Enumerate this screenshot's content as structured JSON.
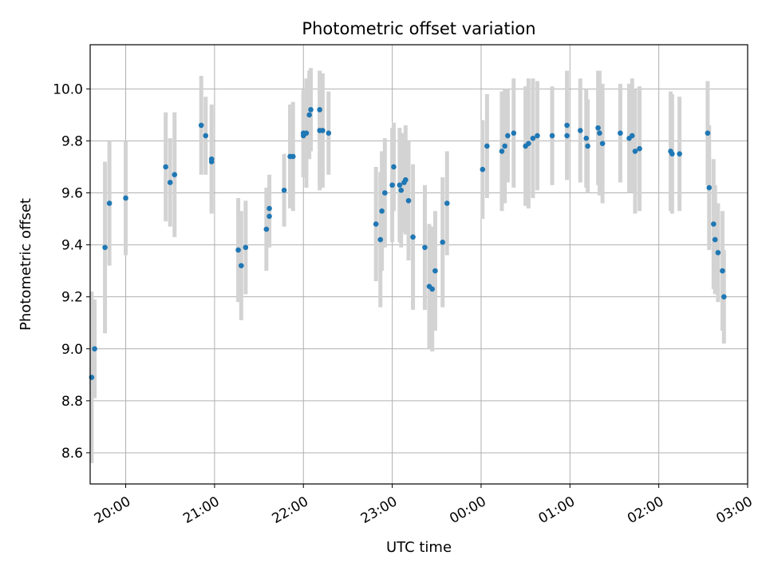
{
  "chart_data": {
    "type": "scatter",
    "title": "Photometric offset variation",
    "xlabel": "UTC time",
    "ylabel": "Photometric offset",
    "grid": true,
    "legend": "none",
    "xlim": [
      "19:36",
      "03:00 (+1 day)"
    ],
    "ylim": [
      8.48,
      10.17
    ],
    "x_tick_labels": [
      "20:00",
      "21:00",
      "22:00",
      "23:00",
      "00:00",
      "01:00",
      "02:00",
      "03:00"
    ],
    "y_tick_values": [
      8.6,
      8.8,
      9.0,
      9.2,
      9.4,
      9.6,
      9.8,
      10.0
    ],
    "y_tick_labels": [
      "8.6",
      "8.8",
      "9.0",
      "9.2",
      "9.4",
      "9.6",
      "9.8",
      "10.0"
    ],
    "colors": {
      "point": "#1f77b4",
      "errorbar": "#d3d3d3",
      "grid": "#b0b0b0",
      "axes": "#000000"
    },
    "series": [
      {
        "x": [
          "19:37",
          "19:39",
          "19:46",
          "19:49",
          "20:00",
          "20:27",
          "20:30",
          "20:33",
          "20:51",
          "20:54",
          "20:58",
          "20:58",
          "21:16",
          "21:18",
          "21:21",
          "21:35",
          "21:37",
          "21:37",
          "21:47",
          "21:51",
          "21:53",
          "22:00",
          "22:00",
          "22:02",
          "22:05",
          "22:04",
          "22:11",
          "22:11",
          "22:13",
          "22:17",
          "22:49",
          "22:52",
          "22:53",
          "22:55",
          "23:00",
          "23:01",
          "23:05",
          "23:06",
          "23:08",
          "23:09",
          "23:11",
          "23:14",
          "23:22",
          "23:25",
          "23:27",
          "23:29",
          "23:34",
          "23:37",
          "00:01",
          "00:04",
          "00:14",
          "00:16",
          "00:18",
          "00:22",
          "00:30",
          "00:32",
          "00:35",
          "00:38",
          "00:48",
          "00:58",
          "00:58",
          "01:07",
          "01:11",
          "01:12",
          "01:19",
          "01:20",
          "01:22",
          "01:34",
          "01:40",
          "01:42",
          "01:44",
          "01:47",
          "02:08",
          "02:09",
          "02:14",
          "02:33",
          "02:34",
          "02:37",
          "02:38",
          "02:40",
          "02:43",
          "02:44"
        ],
        "y": [
          8.89,
          9.0,
          9.39,
          9.56,
          9.58,
          9.7,
          9.64,
          9.67,
          9.86,
          9.82,
          9.73,
          9.72,
          9.38,
          9.32,
          9.39,
          9.46,
          9.54,
          9.51,
          9.61,
          9.74,
          9.74,
          9.82,
          9.83,
          9.83,
          9.92,
          9.9,
          9.92,
          9.84,
          9.84,
          9.83,
          9.48,
          9.42,
          9.53,
          9.6,
          9.63,
          9.7,
          9.63,
          9.61,
          9.64,
          9.65,
          9.57,
          9.43,
          9.39,
          9.24,
          9.23,
          9.3,
          9.41,
          9.56,
          9.69,
          9.78,
          9.76,
          9.78,
          9.82,
          9.83,
          9.78,
          9.79,
          9.81,
          9.82,
          9.82,
          9.82,
          9.86,
          9.84,
          9.81,
          9.78,
          9.85,
          9.83,
          9.79,
          9.83,
          9.81,
          9.82,
          9.76,
          9.77,
          9.76,
          9.75,
          9.75,
          9.83,
          9.62,
          9.48,
          9.42,
          9.37,
          9.3,
          9.2
        ],
        "yerr": [
          0.33,
          0.19,
          0.33,
          0.24,
          0.22,
          0.21,
          0.17,
          0.24,
          0.19,
          0.15,
          0.21,
          0.19,
          0.2,
          0.21,
          0.18,
          0.16,
          0.13,
          0.12,
          0.14,
          0.2,
          0.21,
          0.16,
          0.17,
          0.21,
          0.16,
          0.17,
          0.15,
          0.23,
          0.22,
          0.16,
          0.22,
          0.26,
          0.23,
          0.21,
          0.22,
          0.17,
          0.22,
          0.22,
          0.19,
          0.21,
          0.23,
          0.28,
          0.24,
          0.24,
          0.24,
          0.23,
          0.25,
          0.2,
          0.19,
          0.2,
          0.23,
          0.22,
          0.18,
          0.21,
          0.23,
          0.25,
          0.23,
          0.21,
          0.19,
          0.17,
          0.21,
          0.2,
          0.19,
          0.18,
          0.22,
          0.24,
          0.23,
          0.19,
          0.21,
          0.22,
          0.24,
          0.24,
          0.23,
          0.23,
          0.22,
          0.2,
          0.24,
          0.25,
          0.21,
          0.19,
          0.23,
          0.18
        ]
      }
    ]
  }
}
